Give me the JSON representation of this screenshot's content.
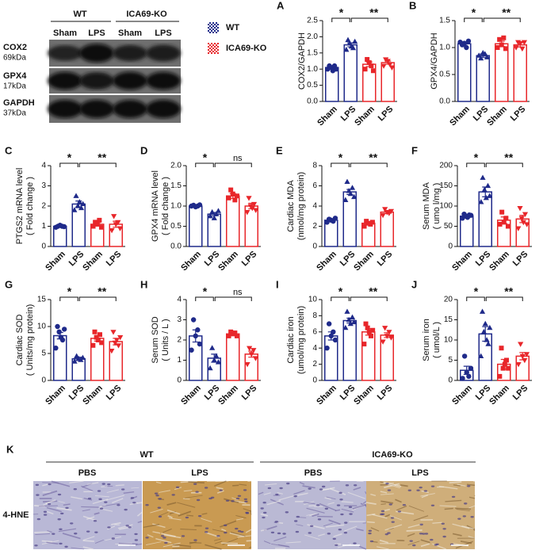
{
  "blot": {
    "groups": [
      "WT",
      "ICA69-KO"
    ],
    "lanes": [
      "Sham",
      "LPS",
      "Sham",
      "LPS"
    ],
    "rows": [
      {
        "name": "COX2",
        "size": "69kDa"
      },
      {
        "name": "GPX4",
        "size": "17kDa"
      },
      {
        "name": "GAPDH",
        "size": "37kDa"
      }
    ]
  },
  "legend": [
    "WT",
    "ICA69-KO"
  ],
  "chart_data": [
    {
      "type": "bar",
      "label": "A",
      "ylabel": [
        "COX2/GAPDH"
      ],
      "categories": [
        "Sham",
        "LPS",
        "Sham",
        "LPS"
      ],
      "colors": [
        "#1f2a8a",
        "#1f2a8a",
        "#e8262a",
        "#e8262a"
      ],
      "values": [
        1.05,
        1.75,
        1.15,
        1.2
      ],
      "errors": [
        0.03,
        0.06,
        0.07,
        0.05
      ],
      "points": [
        [
          1.0,
          1.1,
          1.05,
          0.95,
          1.1,
          1.0
        ],
        [
          1.6,
          1.9,
          1.8,
          1.7,
          1.65,
          1.85
        ],
        [
          1.0,
          1.3,
          1.2,
          1.1,
          0.95
        ],
        [
          1.1,
          1.3,
          1.25,
          1.15,
          1.05
        ]
      ],
      "ylim": [
        0,
        2.5
      ],
      "yticks": [
        {
          "value": 0,
          "label": "0.0"
        },
        0.5,
        {
          "value": 1,
          "label": "1.0"
        },
        1.5,
        {
          "value": 2,
          "label": "2.0"
        },
        2.5
      ],
      "significance": [
        "*",
        "**"
      ]
    },
    {
      "type": "bar",
      "label": "B",
      "ylabel": [
        "GPX4/GAPDH"
      ],
      "categories": [
        "Sham",
        "LPS",
        "Sham",
        "LPS"
      ],
      "colors": [
        "#1f2a8a",
        "#1f2a8a",
        "#e8262a",
        "#e8262a"
      ],
      "values": [
        1.07,
        0.85,
        1.07,
        1.05
      ],
      "errors": [
        0.03,
        0.03,
        0.05,
        0.04
      ],
      "points": [
        [
          1.1,
          1.05,
          1.08,
          1.0,
          1.12
        ],
        [
          0.85,
          0.8,
          0.9,
          0.88,
          0.82
        ],
        [
          1.0,
          1.15,
          1.05,
          1.18,
          0.98
        ],
        [
          1.0,
          1.1,
          1.08,
          0.98,
          1.1
        ]
      ],
      "ylim": [
        0,
        1.5
      ],
      "yticks": [
        {
          "value": 0,
          "label": "0.0"
        },
        0.5,
        {
          "value": 1,
          "label": "1.0"
        },
        1.5
      ],
      "significance": [
        "*",
        "**"
      ]
    },
    {
      "type": "bar",
      "label": "C",
      "ylabel": [
        "PTGS2 mRNA level",
        "( Fold change )"
      ],
      "categories": [
        "Sham",
        "LPS",
        "Sham",
        "LPS"
      ],
      "colors": [
        "#1f2a8a",
        "#1f2a8a",
        "#e8262a",
        "#e8262a"
      ],
      "values": [
        1.0,
        2.1,
        1.1,
        1.1
      ],
      "errors": [
        0.03,
        0.15,
        0.08,
        0.15
      ],
      "points": [
        [
          0.95,
          1.0,
          1.05,
          1.0,
          0.98
        ],
        [
          1.8,
          2.5,
          2.0,
          2.2,
          1.9,
          2.1
        ],
        [
          1.0,
          1.2,
          1.1,
          1.3,
          0.95
        ],
        [
          0.8,
          1.5,
          1.1,
          1.2,
          0.9
        ]
      ],
      "ylim": [
        0,
        4
      ],
      "yticks": [
        0,
        1,
        2,
        3,
        4
      ],
      "significance": [
        "*",
        "**"
      ]
    },
    {
      "type": "bar",
      "label": "D",
      "ylabel": [
        "GPX4 mRNA level",
        "( Fold change )"
      ],
      "categories": [
        "Sham",
        "LPS",
        "Sham",
        "LPS"
      ],
      "colors": [
        "#1f2a8a",
        "#1f2a8a",
        "#e8262a",
        "#e8262a"
      ],
      "values": [
        1.0,
        0.8,
        1.25,
        1.0
      ],
      "errors": [
        0.02,
        0.04,
        0.06,
        0.07
      ],
      "points": [
        [
          1.0,
          1.02,
          0.98,
          1.0,
          1.03
        ],
        [
          0.75,
          0.85,
          0.7,
          0.8,
          0.88
        ],
        [
          1.2,
          1.4,
          1.3,
          1.15,
          1.25
        ],
        [
          0.85,
          1.2,
          1.0,
          0.95,
          1.05,
          0.9
        ]
      ],
      "ylim": [
        0,
        2
      ],
      "yticks": [
        {
          "value": 0,
          "label": "0.0"
        },
        0.5,
        {
          "value": 1,
          "label": "1.0"
        },
        1.5,
        {
          "value": 2,
          "label": "2.0"
        }
      ],
      "significance": [
        "*",
        "ns"
      ]
    },
    {
      "type": "bar",
      "label": "E",
      "ylabel": [
        "Cardiac MDA",
        "(nmol/mg protein)"
      ],
      "categories": [
        "Sham",
        "LPS",
        "Sham",
        "LPS"
      ],
      "colors": [
        "#1f2a8a",
        "#1f2a8a",
        "#e8262a",
        "#e8262a"
      ],
      "values": [
        2.6,
        5.4,
        2.3,
        3.4
      ],
      "errors": [
        0.1,
        0.25,
        0.12,
        0.15
      ],
      "points": [
        [
          2.4,
          2.7,
          2.6,
          2.5,
          2.8
        ],
        [
          4.6,
          6.4,
          5.5,
          5.2,
          5.8,
          4.9
        ],
        [
          2.0,
          2.5,
          2.3,
          2.2,
          2.4
        ],
        [
          3.1,
          3.7,
          3.4,
          3.3,
          3.5
        ]
      ],
      "ylim": [
        0,
        8
      ],
      "yticks": [
        0,
        2,
        4,
        6,
        8
      ],
      "significance": [
        "*",
        "**"
      ]
    },
    {
      "type": "bar",
      "label": "F",
      "ylabel": [
        "Serum MDA",
        "( umo l/mg )"
      ],
      "categories": [
        "Sham",
        "LPS",
        "Sham",
        "LPS"
      ],
      "colors": [
        "#1f2a8a",
        "#1f2a8a",
        "#e8262a",
        "#e8262a"
      ],
      "values": [
        75,
        135,
        65,
        68
      ],
      "errors": [
        4,
        12,
        8,
        9
      ],
      "points": [
        [
          70,
          80,
          75,
          72,
          78,
          77
        ],
        [
          110,
          170,
          140,
          120,
          150,
          125
        ],
        [
          55,
          85,
          60,
          70,
          50
        ],
        [
          45,
          95,
          70,
          60,
          80,
          55
        ]
      ],
      "ylim": [
        0,
        200
      ],
      "yticks": [
        0,
        50,
        100,
        150,
        200
      ],
      "significance": [
        "*",
        "**"
      ]
    },
    {
      "type": "bar",
      "label": "G",
      "ylabel": [
        "Cardiac SOD",
        "( Units/mg protein)"
      ],
      "categories": [
        "Sham",
        "LPS",
        "Sham",
        "LPS"
      ],
      "colors": [
        "#1f2a8a",
        "#1f2a8a",
        "#e8262a",
        "#e8262a"
      ],
      "values": [
        8.3,
        4.0,
        7.8,
        7.2
      ],
      "errors": [
        0.6,
        0.3,
        0.5,
        0.6
      ],
      "points": [
        [
          6,
          10,
          9,
          8,
          7.5,
          9.5
        ],
        [
          3.5,
          4.5,
          4,
          3.8,
          4.2
        ],
        [
          6.5,
          9,
          8,
          7.5,
          8.5,
          7
        ],
        [
          5.5,
          9,
          7,
          7.5,
          6.5,
          8
        ]
      ],
      "ylim": [
        0,
        15
      ],
      "yticks": [
        0,
        5,
        10,
        15
      ],
      "significance": [
        "*",
        "**"
      ]
    },
    {
      "type": "bar",
      "label": "H",
      "ylabel": [
        "Serum SOD",
        "( Units / L )"
      ],
      "categories": [
        "Sham",
        "LPS",
        "Sham",
        "LPS"
      ],
      "colors": [
        "#1f2a8a",
        "#1f2a8a",
        "#e8262a",
        "#e8262a"
      ],
      "values": [
        2.2,
        1.1,
        2.3,
        1.3
      ],
      "errors": [
        0.3,
        0.2,
        0.08,
        0.15
      ],
      "points": [
        [
          1.5,
          3.0,
          2.2,
          2.5,
          1.8
        ],
        [
          0.6,
          1.6,
          1.0,
          1.2,
          0.9
        ],
        [
          2.2,
          2.4,
          2.3,
          2.35,
          2.2
        ],
        [
          0.8,
          1.6,
          1.3,
          1.5,
          1.1
        ]
      ],
      "ylim": [
        0,
        4
      ],
      "yticks": [
        0,
        1,
        2,
        3,
        4
      ],
      "significance": [
        "*",
        "ns"
      ]
    },
    {
      "type": "bar",
      "label": "I",
      "ylabel": [
        "Cardiac iron",
        "(umol/mg protein)"
      ],
      "categories": [
        "Sham",
        "LPS",
        "Sham",
        "LPS"
      ],
      "colors": [
        "#1f2a8a",
        "#1f2a8a",
        "#e8262a",
        "#e8262a"
      ],
      "values": [
        5.5,
        7.4,
        6.0,
        5.6
      ],
      "errors": [
        0.5,
        0.3,
        0.4,
        0.3
      ],
      "points": [
        [
          4,
          7,
          5.5,
          6,
          5
        ],
        [
          6.5,
          8.5,
          7.5,
          7,
          7.8,
          7.2
        ],
        [
          4.5,
          7,
          6.5,
          6,
          5.5,
          6.2
        ],
        [
          4.8,
          6.5,
          5.5,
          6,
          5.3
        ]
      ],
      "ylim": [
        0,
        10
      ],
      "yticks": [
        0,
        2,
        4,
        6,
        8,
        10
      ],
      "significance": [
        "*",
        "**"
      ]
    },
    {
      "type": "bar",
      "label": "J",
      "ylabel": [
        "Serum iron",
        "( umol/L )"
      ],
      "categories": [
        "Sham",
        "LPS",
        "Sham",
        "LPS"
      ],
      "colors": [
        "#1f2a8a",
        "#1f2a8a",
        "#e8262a",
        "#e8262a"
      ],
      "values": [
        2.5,
        11.5,
        4,
        6
      ],
      "errors": [
        1,
        1.8,
        1.2,
        0.9
      ],
      "points": [
        [
          0.5,
          6,
          2,
          1,
          3
        ],
        [
          6,
          17,
          12,
          14,
          10,
          9,
          13
        ],
        [
          1,
          8,
          3,
          4,
          5,
          3
        ],
        [
          4,
          9,
          6,
          5,
          6.5
        ]
      ],
      "ylim": [
        0,
        20
      ],
      "yticks": [
        0,
        5,
        10,
        15,
        20
      ],
      "significance": [
        "*",
        "**"
      ]
    }
  ],
  "histology": {
    "label": "K",
    "groups": [
      "WT",
      "ICA69-KO"
    ],
    "panels": [
      "PBS",
      "LPS",
      "PBS",
      "LPS"
    ],
    "row": "4-HNE"
  }
}
